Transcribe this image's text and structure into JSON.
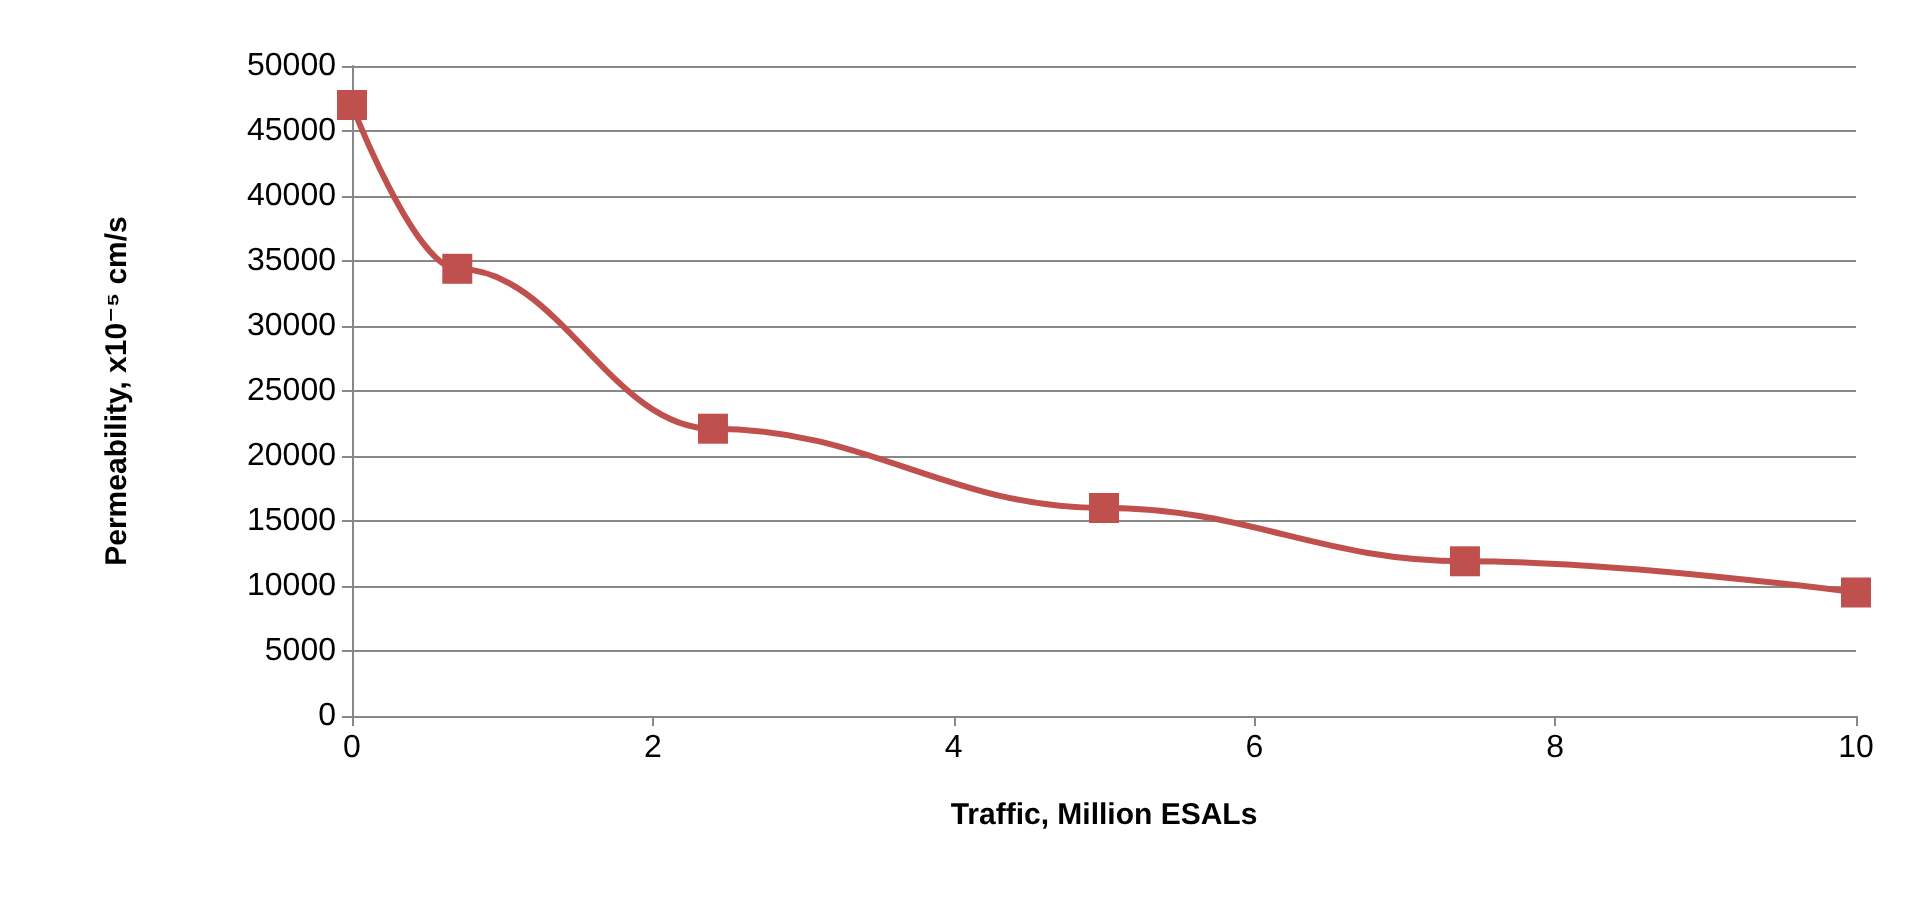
{
  "chart_data": {
    "type": "line",
    "xlabel": "Traffic, Million ESALs",
    "ylabel": "Permeability, x10⁻⁵ cm/s",
    "x": [
      0,
      0.7,
      2.4,
      5,
      7.4,
      10
    ],
    "series": [
      {
        "color": "#c0504d",
        "values": [
          47000,
          34400,
          22100,
          16000,
          11900,
          9500
        ]
      }
    ],
    "xlim": [
      0,
      10
    ],
    "xticks": [
      0,
      2,
      4,
      6,
      8,
      10
    ],
    "ylim": [
      0,
      50000
    ],
    "yticks": [
      0,
      5000,
      10000,
      15000,
      20000,
      25000,
      30000,
      35000,
      40000,
      45000,
      50000
    ],
    "grid": "y",
    "marker": "square",
    "line_style": "solid"
  }
}
